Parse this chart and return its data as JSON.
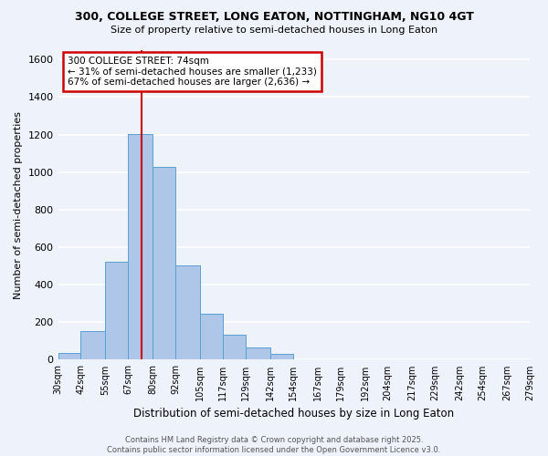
{
  "title_line1": "300, COLLEGE STREET, LONG EATON, NOTTINGHAM, NG10 4GT",
  "title_line2": "Size of property relative to semi-detached houses in Long Eaton",
  "xlabel": "Distribution of semi-detached houses by size in Long Eaton",
  "ylabel": "Number of semi-detached properties",
  "bin_labels": [
    "30sqm",
    "42sqm",
    "55sqm",
    "67sqm",
    "80sqm",
    "92sqm",
    "105sqm",
    "117sqm",
    "129sqm",
    "142sqm",
    "154sqm",
    "167sqm",
    "179sqm",
    "192sqm",
    "204sqm",
    "217sqm",
    "229sqm",
    "242sqm",
    "254sqm",
    "267sqm",
    "279sqm"
  ],
  "bin_edges": [
    30,
    42,
    55,
    67,
    80,
    92,
    105,
    117,
    129,
    142,
    154,
    167,
    179,
    192,
    204,
    217,
    229,
    242,
    254,
    267,
    279
  ],
  "bar_values": [
    35,
    155,
    520,
    1205,
    1030,
    505,
    245,
    135,
    65,
    30,
    0,
    0,
    0,
    0,
    0,
    0,
    0,
    0,
    0,
    0
  ],
  "bar_color": "#aec6e8",
  "bar_edge_color": "#5a9fd4",
  "vline_x": 74,
  "vline_color": "#cc0000",
  "ylim": [
    0,
    1650
  ],
  "yticks": [
    0,
    200,
    400,
    600,
    800,
    1000,
    1200,
    1400,
    1600
  ],
  "annotation_title": "300 COLLEGE STREET: 74sqm",
  "annotation_line1": "← 31% of semi-detached houses are smaller (1,233)",
  "annotation_line2": "67% of semi-detached houses are larger (2,636) →",
  "annotation_box_color": "#ffffff",
  "annotation_box_edge": "#cc0000",
  "footer_line1": "Contains HM Land Registry data © Crown copyright and database right 2025.",
  "footer_line2": "Contains public sector information licensed under the Open Government Licence v3.0.",
  "bg_color": "#edf2fb",
  "plot_bg_color": "#edf2fb",
  "grid_color": "#ffffff"
}
